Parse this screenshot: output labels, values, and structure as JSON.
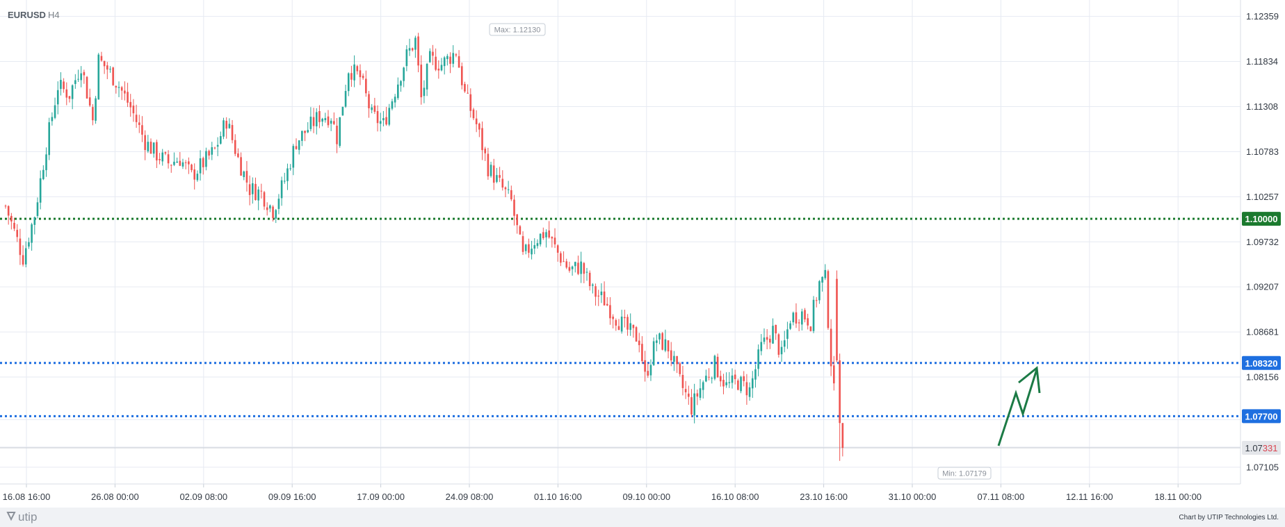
{
  "header": {
    "symbol": "EURUSD",
    "timeframe": "H4"
  },
  "footer": {
    "logo": "utip",
    "credit": "Chart by UTIP Technologies Ltd."
  },
  "colors": {
    "up": "#26a69a",
    "down": "#ef5350",
    "green_level": "#1b7a2e",
    "blue_level": "#1e6fe0",
    "grid": "#e6eaf2",
    "arrow": "#1b7a45"
  },
  "chart_data": {
    "type": "candlestick",
    "symbol": "EURUSD",
    "timeframe": "H4",
    "y_ticks": [
      "1.12359",
      "1.11834",
      "1.11308",
      "1.10783",
      "1.10257",
      "1.09732",
      "1.09207",
      "1.08681",
      "1.08156",
      "1.07105"
    ],
    "x_ticks": [
      "16.08 16:00",
      "26.08 00:00",
      "02.09 08:00",
      "09.09 16:00",
      "17.09 00:00",
      "24.09 08:00",
      "01.10 16:00",
      "09.10 00:00",
      "16.10 08:00",
      "23.10 16:00",
      "31.10 00:00",
      "07.11 08:00",
      "12.11 16:00",
      "18.11 00:00"
    ],
    "ylim": [
      1.0691,
      1.1255
    ],
    "levels": [
      {
        "price": 1.1,
        "label": "1.10000",
        "color": "#1b7a2e"
      },
      {
        "price": 1.0832,
        "label": "1.08320",
        "color": "#1e6fe0"
      },
      {
        "price": 1.077,
        "label": "1.07700",
        "color": "#1e6fe0"
      }
    ],
    "current_price": {
      "label_prefix": "1.07",
      "label_suffix": "331",
      "value": 1.07331
    },
    "max_label": "Max: 1.12130",
    "min_label": "Min: 1.07179",
    "path": [
      [
        0,
        1.1015
      ],
      [
        6,
        1.0955
      ],
      [
        10,
        1.1005
      ],
      [
        14,
        1.1085
      ],
      [
        18,
        1.1155
      ],
      [
        22,
        1.1145
      ],
      [
        26,
        1.118
      ],
      [
        30,
        1.1115
      ],
      [
        32,
        1.1185
      ],
      [
        35,
        1.1175
      ],
      [
        39,
        1.1155
      ],
      [
        43,
        1.113
      ],
      [
        48,
        1.109
      ],
      [
        52,
        1.1075
      ],
      [
        56,
        1.1065
      ],
      [
        60,
        1.107
      ],
      [
        64,
        1.105
      ],
      [
        68,
        1.1065
      ],
      [
        72,
        1.108
      ],
      [
        76,
        1.1115
      ],
      [
        80,
        1.107
      ],
      [
        84,
        1.1035
      ],
      [
        88,
        1.103
      ],
      [
        92,
        1.101
      ],
      [
        96,
        1.1045
      ],
      [
        100,
        1.109
      ],
      [
        104,
        1.1105
      ],
      [
        108,
        1.112
      ],
      [
        112,
        1.112
      ],
      [
        114,
        1.1095
      ],
      [
        118,
        1.1175
      ],
      [
        122,
        1.1165
      ],
      [
        126,
        1.112
      ],
      [
        130,
        1.111
      ],
      [
        134,
        1.115
      ],
      [
        138,
        1.119
      ],
      [
        141,
        1.1208
      ],
      [
        143,
        1.114
      ],
      [
        146,
        1.1185
      ],
      [
        150,
        1.118
      ],
      [
        155,
        1.1195
      ],
      [
        158,
        1.1145
      ],
      [
        162,
        1.111
      ],
      [
        166,
        1.106
      ],
      [
        170,
        1.104
      ],
      [
        174,
        1.102
      ],
      [
        178,
        1.0955
      ],
      [
        182,
        1.0975
      ],
      [
        186,
        1.0985
      ],
      [
        190,
        1.096
      ],
      [
        194,
        1.094
      ],
      [
        198,
        1.0945
      ],
      [
        202,
        1.0915
      ],
      [
        206,
        1.0905
      ],
      [
        210,
        1.0885
      ],
      [
        214,
        1.087
      ],
      [
        218,
        1.086
      ],
      [
        220,
        1.0815
      ],
      [
        224,
        1.086
      ],
      [
        228,
        1.085
      ],
      [
        232,
        1.081
      ],
      [
        236,
        1.078
      ],
      [
        240,
        1.081
      ],
      [
        244,
        1.083
      ],
      [
        248,
        1.0805
      ],
      [
        252,
        1.081
      ],
      [
        256,
        1.08
      ],
      [
        260,
        1.085
      ],
      [
        264,
        1.087
      ],
      [
        267,
        1.084
      ],
      [
        270,
        1.0885
      ],
      [
        274,
        1.089
      ],
      [
        277,
        1.088
      ],
      [
        280,
        1.0925
      ],
      [
        282,
        1.093
      ],
      [
        284,
        1.0835
      ],
      [
        286,
        1.076
      ],
      [
        288,
        1.0738
      ]
    ]
  }
}
